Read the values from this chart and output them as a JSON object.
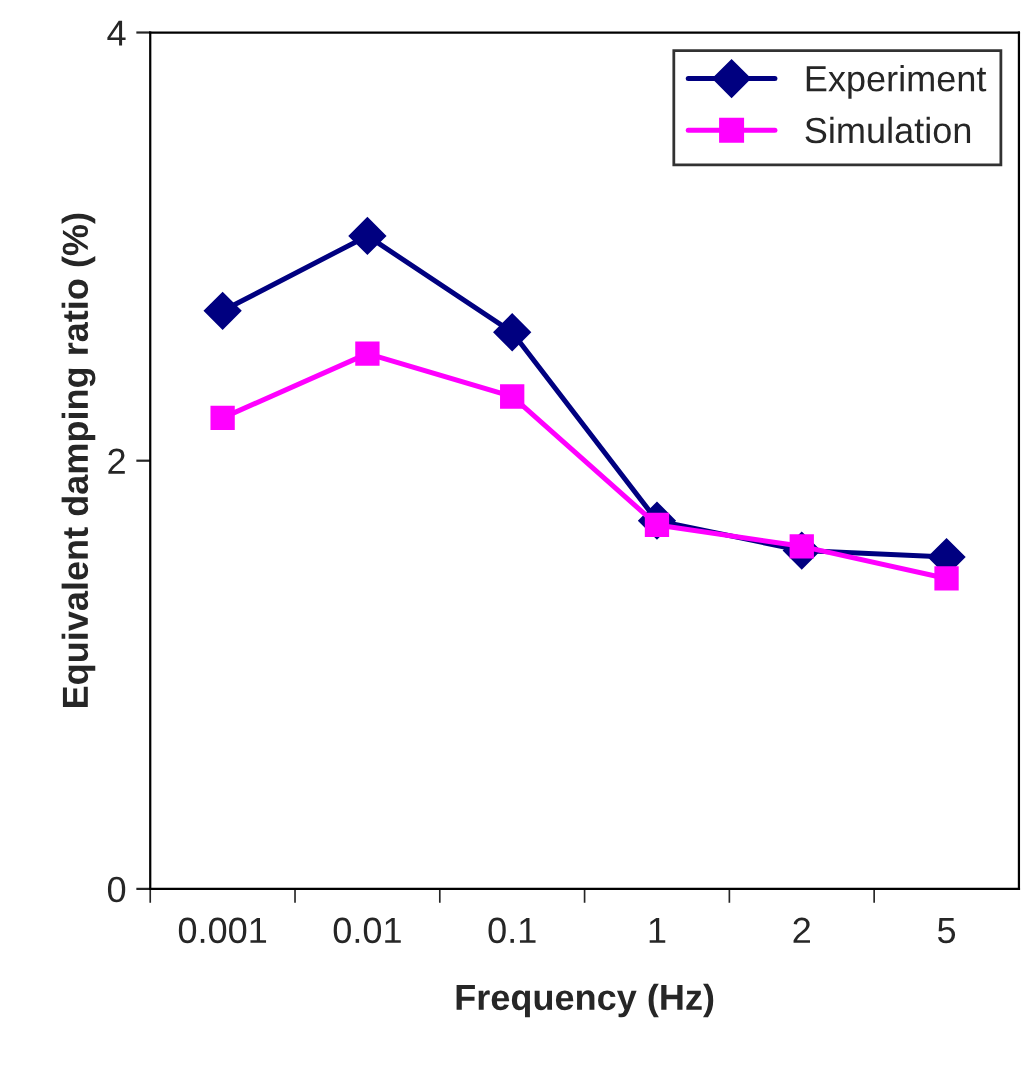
{
  "chart_data": {
    "type": "line",
    "xlabel": "Frequency (Hz)",
    "ylabel": "Equivalent damping ratio (%)",
    "categories": [
      "0.001",
      "0.01",
      "0.1",
      "1",
      "2",
      "5"
    ],
    "series": [
      {
        "name": "Experiment",
        "color": "#000080",
        "marker": "diamond",
        "values": [
          2.7,
          3.05,
          2.6,
          1.72,
          1.58,
          1.55
        ]
      },
      {
        "name": "Simulation",
        "color": "#ff00ff",
        "marker": "square",
        "values": [
          2.2,
          2.5,
          2.3,
          1.7,
          1.6,
          1.45
        ]
      }
    ],
    "ylim": [
      0,
      4
    ],
    "yticks": [
      0,
      2,
      4
    ],
    "grid": false,
    "legend": "top right",
    "line_style": "solid"
  }
}
